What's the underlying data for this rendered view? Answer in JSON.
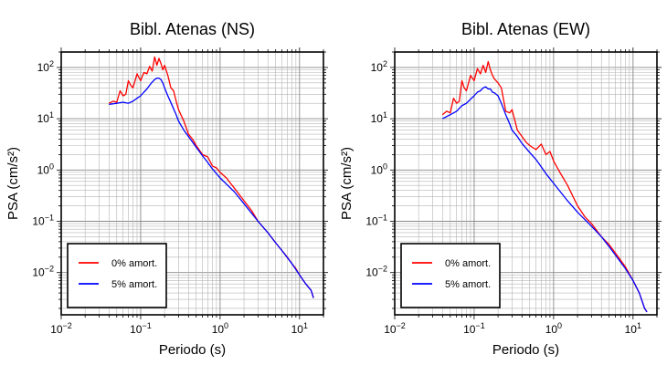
{
  "chart_data": [
    {
      "type": "line",
      "title": "Bibl. Atenas (NS)",
      "xlabel": "Periodo (s)",
      "ylabel": "PSA (cm/s²)",
      "x_scale": "log",
      "y_scale": "log",
      "xlim": [
        0.01,
        20
      ],
      "ylim": [
        0.0015,
        200
      ],
      "x_ticks": [
        {
          "base": "10",
          "exp": "−2"
        },
        {
          "base": "10",
          "exp": "−1"
        },
        {
          "base": "10",
          "exp": "0"
        },
        {
          "base": "10",
          "exp": "1"
        }
      ],
      "y_ticks": [
        {
          "base": "10",
          "exp": "−2"
        },
        {
          "base": "10",
          "exp": "−1"
        },
        {
          "base": "10",
          "exp": "0"
        },
        {
          "base": "10",
          "exp": "1"
        },
        {
          "base": "10",
          "exp": "2"
        }
      ],
      "grid": true,
      "legend_position": "bottom-left",
      "series": [
        {
          "name": "0% amort.",
          "color": "#ff0000",
          "x": [
            0.04,
            0.045,
            0.05,
            0.055,
            0.06,
            0.065,
            0.07,
            0.075,
            0.08,
            0.09,
            0.1,
            0.11,
            0.12,
            0.13,
            0.14,
            0.15,
            0.16,
            0.17,
            0.18,
            0.19,
            0.2,
            0.22,
            0.24,
            0.26,
            0.28,
            0.3,
            0.35,
            0.4,
            0.45,
            0.5,
            0.6,
            0.7,
            0.8,
            0.9,
            1.0,
            1.2,
            1.5,
            2,
            2.5,
            3,
            4,
            5,
            6,
            7,
            8,
            9,
            10,
            12,
            14,
            15
          ],
          "y": [
            20,
            22,
            21,
            35,
            28,
            30,
            55,
            45,
            40,
            75,
            55,
            80,
            75,
            105,
            85,
            160,
            110,
            150,
            120,
            90,
            110,
            70,
            40,
            35,
            22,
            15,
            9,
            5,
            4,
            3,
            2,
            1.8,
            1.2,
            1.1,
            0.9,
            0.7,
            0.45,
            0.25,
            0.16,
            0.1,
            0.06,
            0.038,
            0.027,
            0.02,
            0.015,
            0.012,
            0.009,
            0.006,
            0.0045,
            0.0032
          ]
        },
        {
          "name": "5% amort.",
          "color": "#0000ff",
          "x": [
            0.04,
            0.05,
            0.06,
            0.07,
            0.08,
            0.09,
            0.1,
            0.11,
            0.12,
            0.13,
            0.14,
            0.15,
            0.16,
            0.17,
            0.18,
            0.19,
            0.2,
            0.22,
            0.25,
            0.28,
            0.3,
            0.35,
            0.4,
            0.5,
            0.6,
            0.7,
            0.8,
            1.0,
            1.5,
            2,
            3,
            4,
            5,
            6,
            8,
            10,
            12,
            14,
            15
          ],
          "y": [
            19,
            20,
            21,
            20,
            22,
            25,
            28,
            33,
            38,
            45,
            52,
            58,
            62,
            62,
            58,
            50,
            40,
            28,
            18,
            12,
            9,
            6,
            4.5,
            2.8,
            1.9,
            1.4,
            1.05,
            0.7,
            0.38,
            0.22,
            0.1,
            0.06,
            0.038,
            0.027,
            0.015,
            0.009,
            0.006,
            0.0045,
            0.0032
          ]
        }
      ]
    },
    {
      "type": "line",
      "title": "Bibl. Atenas (EW)",
      "xlabel": "Periodo (s)",
      "ylabel": "PSA (cm/s²)",
      "x_scale": "log",
      "y_scale": "log",
      "xlim": [
        0.01,
        20
      ],
      "ylim": [
        0.0015,
        200
      ],
      "x_ticks": [
        {
          "base": "10",
          "exp": "−2"
        },
        {
          "base": "10",
          "exp": "−1"
        },
        {
          "base": "10",
          "exp": "0"
        },
        {
          "base": "10",
          "exp": "1"
        }
      ],
      "y_ticks": [
        {
          "base": "10",
          "exp": "−2"
        },
        {
          "base": "10",
          "exp": "−1"
        },
        {
          "base": "10",
          "exp": "0"
        },
        {
          "base": "10",
          "exp": "1"
        },
        {
          "base": "10",
          "exp": "2"
        }
      ],
      "grid": true,
      "legend_position": "bottom-left",
      "series": [
        {
          "name": "0% amort.",
          "color": "#ff0000",
          "x": [
            0.04,
            0.045,
            0.05,
            0.055,
            0.06,
            0.065,
            0.07,
            0.075,
            0.08,
            0.09,
            0.1,
            0.11,
            0.12,
            0.13,
            0.14,
            0.15,
            0.16,
            0.17,
            0.18,
            0.2,
            0.22,
            0.25,
            0.28,
            0.3,
            0.35,
            0.4,
            0.45,
            0.5,
            0.6,
            0.7,
            0.8,
            0.9,
            1.0,
            1.2,
            1.5,
            2,
            2.5,
            3,
            4,
            5,
            6,
            8,
            10,
            12,
            14,
            15
          ],
          "y": [
            12,
            14,
            13,
            25,
            20,
            22,
            55,
            40,
            35,
            70,
            55,
            95,
            75,
            110,
            80,
            130,
            90,
            70,
            60,
            50,
            40,
            14,
            13,
            15,
            6,
            4.5,
            3.5,
            3.0,
            2.5,
            3.2,
            2.0,
            2.3,
            1.5,
            0.9,
            0.5,
            0.2,
            0.12,
            0.09,
            0.05,
            0.035,
            0.024,
            0.013,
            0.007,
            0.004,
            0.002,
            0.0017
          ]
        },
        {
          "name": "5% amort.",
          "color": "#0000ff",
          "x": [
            0.04,
            0.05,
            0.06,
            0.07,
            0.08,
            0.09,
            0.1,
            0.11,
            0.12,
            0.13,
            0.14,
            0.15,
            0.16,
            0.17,
            0.18,
            0.2,
            0.22,
            0.25,
            0.28,
            0.3,
            0.35,
            0.4,
            0.5,
            0.6,
            0.7,
            0.8,
            1.0,
            1.5,
            2,
            3,
            4,
            5,
            6,
            8,
            10,
            12,
            14,
            15
          ],
          "y": [
            10,
            12,
            14,
            18,
            20,
            24,
            28,
            33,
            35,
            40,
            42,
            38,
            38,
            33,
            32,
            28,
            20,
            12,
            8,
            6,
            4.5,
            3.3,
            2.2,
            1.6,
            1.15,
            0.85,
            0.55,
            0.25,
            0.15,
            0.08,
            0.05,
            0.032,
            0.022,
            0.012,
            0.007,
            0.004,
            0.002,
            0.0017
          ]
        }
      ]
    }
  ]
}
